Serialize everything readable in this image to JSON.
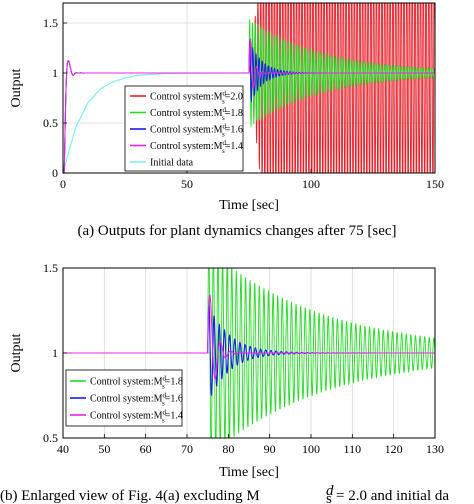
{
  "chart_data": [
    {
      "type": "line",
      "xlabel": "Time [sec]",
      "ylabel": "Output",
      "xlim": [
        0,
        150
      ],
      "ylim": [
        0,
        1.7
      ],
      "xticks": [
        "0",
        "50",
        "100",
        "150"
      ],
      "yticks": [
        "0",
        "0.5",
        "1",
        "1.5"
      ],
      "grid": true,
      "legend_position": "center",
      "caption": "(a)  Outputs for plant dynamics changes after 75 [sec]",
      "series": [
        {
          "name": "Control system:M_s^d=2.0",
          "color": "#e8202a",
          "behavior": "Settles at 1 then diverges into sustained oscillation between 0 and 1.7 after t=75"
        },
        {
          "name": "Control system:M_s^d=1.8",
          "color": "#22dd22",
          "behavior": "Settles at 1, oscillates after t=75 decaying to 1 by t=150"
        },
        {
          "name": "Control system:M_s^d=1.6",
          "color": "#1a1aee",
          "behavior": "Settles at 1, short oscillation after t=75 decaying by t=95"
        },
        {
          "name": "Control system:M_s^d=1.4",
          "color": "#ee22ee",
          "behavior": "Settles at 1, brief spike to 1.5 at t=75 then quickly settles"
        },
        {
          "name": "Initial data",
          "color": "#7ff0f0",
          "x": [
            0,
            5,
            10,
            15,
            20,
            25,
            30,
            40,
            50,
            75,
            150
          ],
          "y": [
            0,
            0.45,
            0.7,
            0.84,
            0.91,
            0.95,
            0.975,
            0.993,
            0.998,
            1.0,
            1.0
          ]
        }
      ],
      "legend": [
        {
          "prefix": "Control system:M",
          "value": "=2.0",
          "color": "#e8202a"
        },
        {
          "prefix": "Control system:M",
          "value": "=1.8",
          "color": "#22dd22"
        },
        {
          "prefix": "Control system:M",
          "value": "=1.6",
          "color": "#1a1aee"
        },
        {
          "prefix": "Control system:M",
          "value": "=1.4",
          "color": "#ee22ee"
        },
        {
          "prefix": "Initial data",
          "value": "",
          "color": "#7ff0f0"
        }
      ]
    },
    {
      "type": "line",
      "xlabel": "Time [sec]",
      "ylabel": "Output",
      "xlim": [
        40,
        130
      ],
      "ylim": [
        0.5,
        1.5
      ],
      "xticks": [
        "40",
        "50",
        "60",
        "70",
        "80",
        "90",
        "100",
        "110",
        "120",
        "130"
      ],
      "yticks": [
        "0.5",
        "1",
        "1.5"
      ],
      "grid": true,
      "legend_position": "bottom-left",
      "caption": "(b)  Enlarged view of Fig. 4(a) excluding M",
      "caption_tail": "= 2.0 and initial da",
      "series": [
        {
          "name": "Control system:M_s^d=1.8",
          "color": "#22dd22",
          "behavior": "Oscillation from t=75 decaying from full range to ~0.03 by t=130"
        },
        {
          "name": "Control system:M_s^d=1.6",
          "color": "#1a1aee",
          "behavior": "Oscillation from t=75 decaying to 1 by t=95"
        },
        {
          "name": "Control system:M_s^d=1.4",
          "color": "#ee22ee",
          "behavior": "Constant 1 until t=75, spike to 1.5 then settles by t=85"
        }
      ],
      "legend": [
        {
          "prefix": "Control system:M",
          "value": "=1.8",
          "color": "#22dd22"
        },
        {
          "prefix": "Control system:M",
          "value": "=1.6",
          "color": "#1a1aee"
        },
        {
          "prefix": "Control system:M",
          "value": "=1.4",
          "color": "#ee22ee"
        }
      ]
    }
  ]
}
